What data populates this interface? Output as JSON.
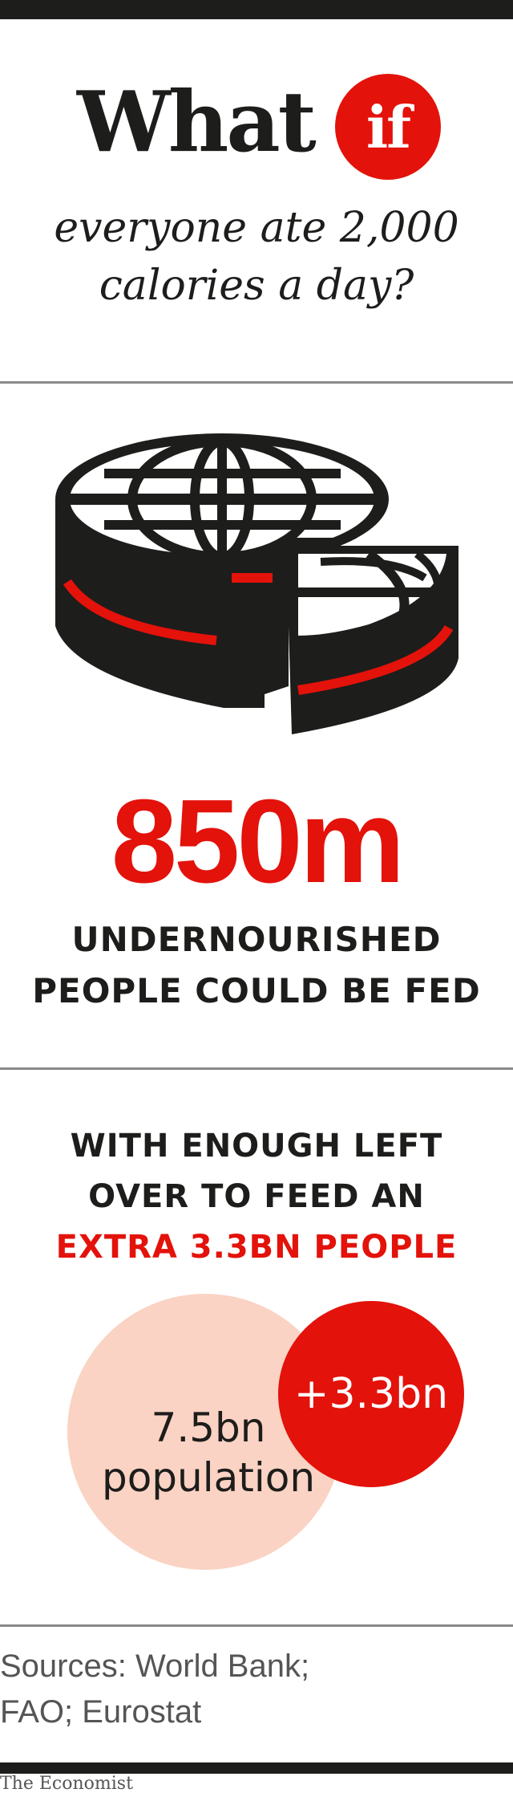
{
  "headline": {
    "word": "What",
    "badge": "if",
    "subtitle_line1": "everyone ate 2,000",
    "subtitle_line2": "calories a day?"
  },
  "fed": {
    "number": "850m",
    "line1": "UNDERNOURISHED",
    "line2": "PEOPLE COULD BE FED"
  },
  "leftover": {
    "line1": "WITH ENOUGH LEFT",
    "line2": "OVER TO FEED AN",
    "line3": "EXTRA 3.3BN PEOPLE"
  },
  "circles": {
    "population_value": "7.5bn",
    "population_label": "population",
    "extra": "+3.3bn"
  },
  "sources": {
    "line1": "Sources: World Bank;",
    "line2": "FAO; Eurostat"
  },
  "brand": "The Economist",
  "colors": {
    "accent": "#e3120b",
    "ink": "#1d1d1b",
    "population_fill": "#fad3c4",
    "rule": "#8a8a8a",
    "muted_text": "#555555"
  },
  "icons": {
    "globe": "sliced-globe-icon"
  }
}
